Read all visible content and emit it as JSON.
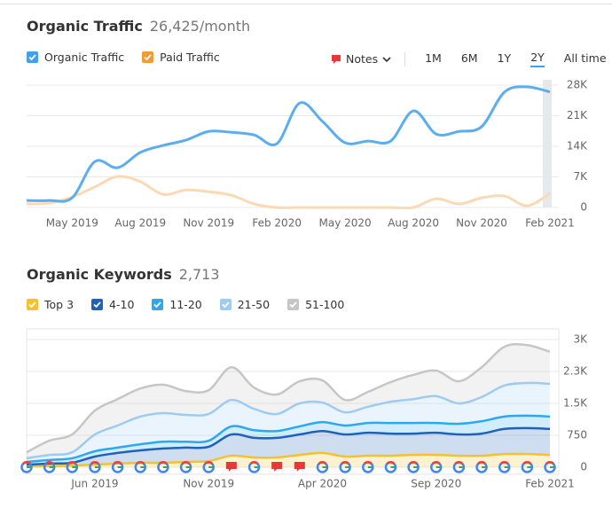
{
  "chart_data": [
    {
      "type": "line",
      "title": "Organic Traffic",
      "subtitle": "26,425/month",
      "categories": [
        null,
        null,
        "May 2019",
        null,
        null,
        "Aug 2019",
        null,
        null,
        "Nov 2019",
        null,
        null,
        "Feb 2020",
        null,
        null,
        "May 2020",
        null,
        null,
        "Aug 2020",
        null,
        null,
        "Nov 2020",
        null,
        null,
        "Feb 2021"
      ],
      "series": [
        {
          "name": "Organic Traffic",
          "color": "#5aaef0",
          "checkbox_color": "#3fa0ee",
          "values": [
            1600,
            1600,
            2200,
            10500,
            9100,
            12600,
            14200,
            15400,
            17400,
            17200,
            16600,
            14600,
            23900,
            19700,
            14800,
            15200,
            15200,
            22100,
            16800,
            17400,
            18500,
            26400,
            27600,
            26425
          ]
        },
        {
          "name": "Paid Traffic",
          "color": "#fbd9b4",
          "checkbox_color": "#f29b30",
          "values": [
            800,
            1000,
            2400,
            4700,
            7100,
            5900,
            3000,
            4000,
            3600,
            2800,
            800,
            0,
            0,
            0,
            0,
            0,
            0,
            0,
            2000,
            800,
            2200,
            2600,
            400,
            3200
          ]
        }
      ],
      "ylim": [
        0,
        28000
      ],
      "yticks": [
        0,
        {
          "value": 7000,
          "label": "7K"
        },
        {
          "value": 14000,
          "label": "14K"
        },
        {
          "value": 21000,
          "label": "21K"
        },
        {
          "value": 28000,
          "label": "28K"
        }
      ],
      "grid": true
    },
    {
      "type": "stacked_area",
      "title": "Organic Keywords",
      "subtitle": "2,713",
      "categories": [
        null,
        null,
        null,
        "Jun 2019",
        null,
        null,
        null,
        null,
        "Nov 2019",
        null,
        null,
        null,
        null,
        "Apr 2020",
        null,
        null,
        null,
        null,
        "Sep 2020",
        null,
        null,
        null,
        null,
        "Feb 2021"
      ],
      "series": [
        {
          "name": "Top 3",
          "color": "#f2c230",
          "values": [
            25,
            25,
            40,
            60,
            85,
            105,
            105,
            125,
            145,
            270,
            230,
            230,
            290,
            335,
            250,
            270,
            270,
            290,
            290,
            270,
            270,
            310,
            310,
            290
          ]
        },
        {
          "name": "4-10",
          "color": "#1f62b8",
          "values": [
            35,
            60,
            65,
            190,
            250,
            290,
            335,
            335,
            335,
            500,
            460,
            460,
            480,
            515,
            520,
            540,
            520,
            500,
            520,
            500,
            520,
            590,
            610,
            610
          ]
        },
        {
          "name": "11-20",
          "color": "#2ea7ee",
          "values": [
            65,
            85,
            105,
            125,
            125,
            145,
            160,
            140,
            140,
            190,
            180,
            160,
            190,
            210,
            210,
            230,
            250,
            250,
            230,
            250,
            290,
            290,
            290,
            290
          ]
        },
        {
          "name": "21-50",
          "color": "#9fcbf0",
          "values": [
            85,
            120,
            140,
            395,
            520,
            650,
            670,
            630,
            630,
            620,
            500,
            400,
            540,
            460,
            310,
            380,
            500,
            560,
            630,
            480,
            570,
            730,
            770,
            770
          ]
        },
        {
          "name": "51-100",
          "color": "#c6c6c6",
          "values": [
            140,
            335,
            420,
            560,
            620,
            660,
            670,
            560,
            560,
            770,
            500,
            460,
            520,
            520,
            290,
            350,
            460,
            570,
            600,
            520,
            700,
            910,
            890,
            753
          ]
        }
      ],
      "ylim": [
        0,
        3000
      ],
      "yticks": [
        0,
        750,
        {
          "value": 1500,
          "label": "1.5K"
        },
        {
          "value": 2250,
          "label": "2.3K"
        },
        {
          "value": 3000,
          "label": "3K"
        }
      ],
      "grid": true
    }
  ],
  "controls": {
    "notes": "Notes",
    "ranges": [
      "1M",
      "6M",
      "1Y",
      "2Y",
      "All time"
    ],
    "selected": 3
  }
}
